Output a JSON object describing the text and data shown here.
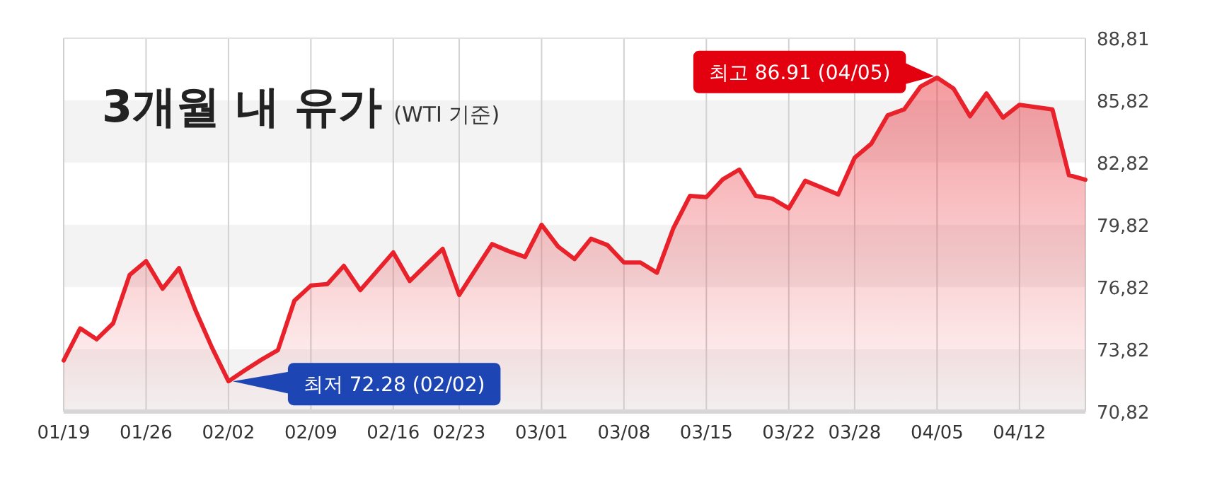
{
  "chart_data": {
    "type": "area",
    "title": "3개월 내 유가",
    "subtitle": "(WTI 기준)",
    "categories": [
      "01/19",
      null,
      null,
      null,
      null,
      "01/26",
      null,
      null,
      null,
      null,
      "02/02",
      null,
      null,
      null,
      null,
      "02/09",
      null,
      null,
      null,
      null,
      "02/16",
      null,
      null,
      null,
      "02/23",
      null,
      null,
      null,
      null,
      "03/01",
      null,
      null,
      null,
      null,
      "03/08",
      null,
      null,
      null,
      null,
      "03/15",
      null,
      null,
      null,
      null,
      "03/22",
      null,
      null,
      null,
      "03/28",
      null,
      null,
      null,
      null,
      "04/05",
      null,
      null,
      null,
      null,
      "04/12",
      null,
      null,
      null,
      null
    ],
    "values": [
      73.28,
      74.83,
      74.3,
      75.07,
      77.4,
      78.07,
      76.74,
      77.73,
      75.7,
      73.9,
      72.28,
      72.81,
      73.32,
      73.78,
      76.16,
      76.89,
      76.96,
      77.84,
      76.67,
      77.58,
      78.49,
      77.11,
      77.89,
      78.66,
      76.44,
      77.67,
      78.89,
      78.55,
      78.27,
      79.82,
      78.77,
      78.17,
      79.15,
      78.84,
      78.0,
      78.0,
      77.51,
      79.66,
      81.21,
      81.15,
      82.01,
      82.48,
      81.21,
      81.08,
      80.61,
      81.94,
      81.61,
      81.28,
      83.05,
      83.72,
      85.09,
      85.38,
      86.48,
      86.91,
      86.38,
      85.05,
      86.15,
      84.98,
      85.6,
      85.49,
      85.38,
      82.21,
      81.99
    ],
    "color": "#e8212a",
    "ylim": [
      70.82,
      88.81
    ],
    "yticks": [
      {
        "value": 70.82,
        "label": "70,82"
      },
      {
        "value": 73.82,
        "label": "73,82"
      },
      {
        "value": 76.82,
        "label": "76,82"
      },
      {
        "value": 79.82,
        "label": "79,82"
      },
      {
        "value": 82.82,
        "label": "82,82"
      },
      {
        "value": 85.82,
        "label": "85,82"
      },
      {
        "value": 88.81,
        "label": "88,81"
      }
    ],
    "grid": true,
    "annotations": [
      {
        "text": "최고 86.91 (04/05)",
        "x": "04/05",
        "y": 86.91
      },
      {
        "text": "최저 72.28 (02/02)",
        "x": "02/02",
        "y": 72.28
      }
    ]
  }
}
